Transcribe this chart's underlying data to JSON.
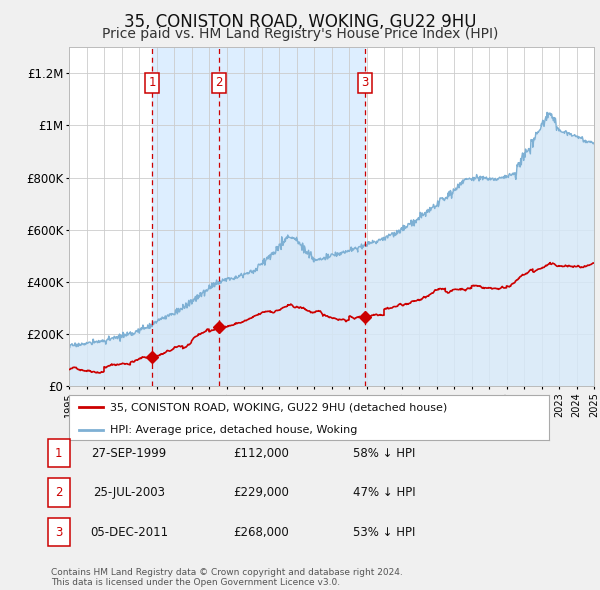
{
  "title": "35, CONISTON ROAD, WOKING, GU22 9HU",
  "subtitle": "Price paid vs. HM Land Registry's House Price Index (HPI)",
  "title_fontsize": 12,
  "subtitle_fontsize": 10,
  "background_color": "#f0f0f0",
  "plot_bg_color": "#ffffff",
  "sale_color": "#cc0000",
  "hpi_color": "#7eb0d4",
  "hpi_fill_color": "#d6e8f7",
  "ylim": [
    0,
    1300000
  ],
  "yticks": [
    0,
    200000,
    400000,
    600000,
    800000,
    1000000,
    1200000
  ],
  "ytick_labels": [
    "£0",
    "£200K",
    "£400K",
    "£600K",
    "£800K",
    "£1M",
    "£1.2M"
  ],
  "xmin": 1995,
  "xmax": 2025,
  "sales": [
    {
      "date_num": 1999.74,
      "price": 112000,
      "label": "1"
    },
    {
      "date_num": 2003.56,
      "price": 229000,
      "label": "2"
    },
    {
      "date_num": 2011.92,
      "price": 268000,
      "label": "3"
    }
  ],
  "vline_dates": [
    1999.74,
    2003.56,
    2011.92
  ],
  "span_color": "#ddeeff",
  "legend_sale_label": "35, CONISTON ROAD, WOKING, GU22 9HU (detached house)",
  "legend_hpi_label": "HPI: Average price, detached house, Woking",
  "table_rows": [
    {
      "num": "1",
      "date": "27-SEP-1999",
      "price": "£112,000",
      "pct": "58% ↓ HPI"
    },
    {
      "num": "2",
      "date": "25-JUL-2003",
      "price": "£229,000",
      "pct": "47% ↓ HPI"
    },
    {
      "num": "3",
      "date": "05-DEC-2011",
      "price": "£268,000",
      "pct": "53% ↓ HPI"
    }
  ],
  "footer": "Contains HM Land Registry data © Crown copyright and database right 2024.\nThis data is licensed under the Open Government Licence v3.0."
}
